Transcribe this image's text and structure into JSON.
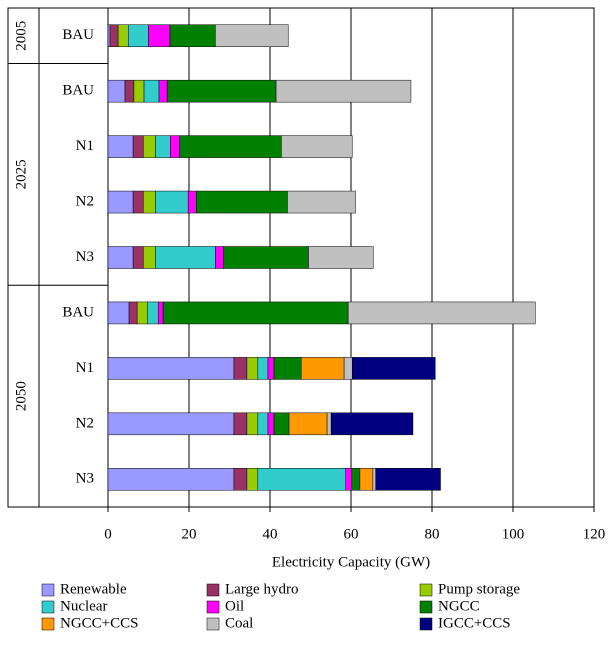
{
  "chart_data": {
    "type": "stacked-bar-horizontal",
    "groups": [
      {
        "label": "2005",
        "categories": [
          "BAU"
        ]
      },
      {
        "label": "2025",
        "categories": [
          "BAU",
          "N1",
          "N2",
          "N3"
        ]
      },
      {
        "label": "2050",
        "categories": [
          "BAU",
          "N1",
          "N2",
          "N3"
        ]
      }
    ],
    "x_label": "Electricity Capacity (GW)",
    "xlim": [
      0,
      120
    ],
    "xticks": [
      0,
      20,
      40,
      60,
      80,
      100,
      120
    ],
    "grid": true,
    "series": [
      {
        "name": "Renewable",
        "color": "#9999ff",
        "values": [
          0.5,
          4.2,
          6.2,
          6.2,
          6.2,
          5.2,
          31.1,
          31.1,
          31.1
        ]
      },
      {
        "name": "Large hydro",
        "color": "#993366",
        "values": [
          2.0,
          2.2,
          2.5,
          2.5,
          2.5,
          2.0,
          3.2,
          3.2,
          3.2
        ]
      },
      {
        "name": "Pump storage",
        "color": "#99cc00",
        "values": [
          2.5,
          2.5,
          3.0,
          3.0,
          3.0,
          2.5,
          2.7,
          2.7,
          2.7
        ]
      },
      {
        "name": "Nuclear",
        "color": "#33cccc",
        "values": [
          5.0,
          3.7,
          3.7,
          8.1,
          14.8,
          2.7,
          2.5,
          2.5,
          21.7
        ]
      },
      {
        "name": "Oil",
        "color": "#ff00ff",
        "values": [
          5.3,
          2.0,
          2.2,
          2.0,
          2.0,
          1.2,
          1.5,
          1.5,
          1.5
        ]
      },
      {
        "name": "NGCC",
        "color": "#008000",
        "values": [
          11.2,
          26.9,
          25.2,
          22.5,
          21.0,
          45.7,
          6.7,
          3.7,
          2.0
        ]
      },
      {
        "name": "NGCC+CCS",
        "color": "#ff9900",
        "values": [
          0,
          0,
          0,
          0,
          0,
          0,
          10.6,
          9.4,
          3.2
        ]
      },
      {
        "name": "Coal",
        "color": "#c0c0c0",
        "values": [
          18.0,
          33.3,
          17.5,
          16.8,
          16.0,
          46.2,
          2.0,
          1.0,
          0.7
        ]
      },
      {
        "name": "IGCC+CCS",
        "color": "#000080",
        "values": [
          0,
          0,
          0,
          0,
          0,
          0,
          20.5,
          20.2,
          16.0
        ]
      }
    ]
  }
}
